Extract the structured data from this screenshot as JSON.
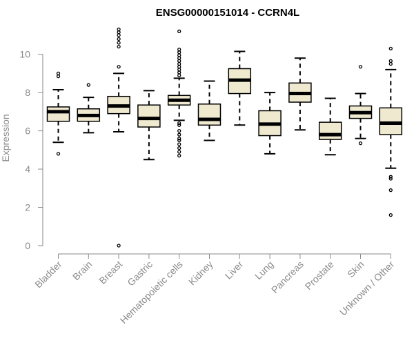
{
  "chart_data": {
    "type": "boxplot",
    "title": "ENSG00000151014 - CCRN4L",
    "xlabel": "",
    "ylabel": "Expression",
    "ylim": [
      0,
      10.3
    ],
    "yticks": [
      0,
      2,
      4,
      6,
      8,
      10
    ],
    "box_fill": "#efe9cf",
    "box_stroke": "#000000",
    "axis_color": "#8a8a8a",
    "grid": false,
    "categories": [
      "Bladder",
      "Brain",
      "Breast",
      "Gastric",
      "Hematopoietic cells",
      "Kidney",
      "Liver",
      "Lung",
      "Pancreas",
      "Prostate",
      "Skin",
      "Unknown / Other"
    ],
    "boxes": [
      {
        "whisker_low": 5.4,
        "q1": 6.5,
        "median": 7.0,
        "q3": 7.25,
        "whisker_high": 8.15,
        "outliers": [
          4.8,
          8.85,
          9.0
        ]
      },
      {
        "whisker_low": 5.9,
        "q1": 6.5,
        "median": 6.8,
        "q3": 7.15,
        "whisker_high": 7.75,
        "outliers": [
          8.4
        ]
      },
      {
        "whisker_low": 5.95,
        "q1": 6.9,
        "median": 7.3,
        "q3": 7.8,
        "whisker_high": 9.0,
        "outliers": [
          0.0,
          9.35,
          10.4,
          10.6,
          10.8,
          11.0,
          11.15,
          11.3
        ]
      },
      {
        "whisker_low": 4.5,
        "q1": 6.2,
        "median": 6.65,
        "q3": 7.35,
        "whisker_high": 8.1,
        "outliers": []
      },
      {
        "whisker_low": 6.55,
        "q1": 7.35,
        "median": 7.6,
        "q3": 7.85,
        "whisker_high": 8.75,
        "outliers": [
          4.7,
          4.9,
          5.1,
          5.3,
          5.5,
          5.6,
          5.8,
          6.0,
          6.3,
          6.4,
          8.9,
          9.05,
          9.2,
          9.35,
          9.5,
          9.65,
          9.8,
          9.95,
          10.1,
          10.25,
          11.2
        ]
      },
      {
        "whisker_low": 5.5,
        "q1": 6.3,
        "median": 6.6,
        "q3": 7.4,
        "whisker_high": 8.6,
        "outliers": []
      },
      {
        "whisker_low": 6.3,
        "q1": 7.95,
        "median": 8.65,
        "q3": 9.25,
        "whisker_high": 10.15,
        "outliers": []
      },
      {
        "whisker_low": 4.8,
        "q1": 5.75,
        "median": 6.35,
        "q3": 7.05,
        "whisker_high": 8.0,
        "outliers": []
      },
      {
        "whisker_low": 6.05,
        "q1": 7.5,
        "median": 7.95,
        "q3": 8.5,
        "whisker_high": 9.8,
        "outliers": []
      },
      {
        "whisker_low": 4.75,
        "q1": 5.55,
        "median": 5.8,
        "q3": 6.45,
        "whisker_high": 7.7,
        "outliers": []
      },
      {
        "whisker_low": 5.6,
        "q1": 6.65,
        "median": 6.95,
        "q3": 7.3,
        "whisker_high": 7.95,
        "outliers": [
          5.35,
          9.35
        ]
      },
      {
        "whisker_low": 4.05,
        "q1": 5.8,
        "median": 6.4,
        "q3": 7.2,
        "whisker_high": 9.2,
        "outliers": [
          1.6,
          2.9,
          3.5,
          3.6,
          9.5,
          9.65,
          10.3
        ]
      }
    ]
  }
}
